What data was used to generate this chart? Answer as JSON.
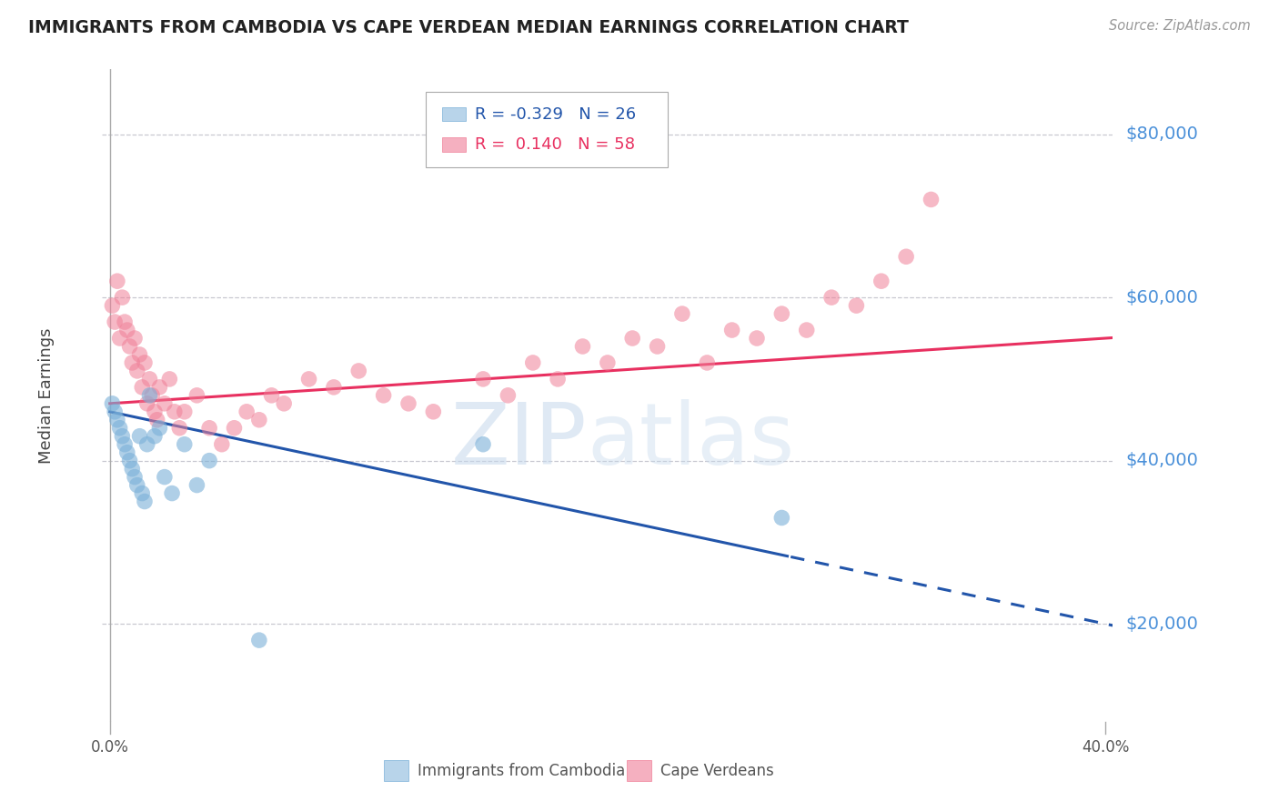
{
  "title": "IMMIGRANTS FROM CAMBODIA VS CAPE VERDEAN MEDIAN EARNINGS CORRELATION CHART",
  "source": "Source: ZipAtlas.com",
  "ylabel": "Median Earnings",
  "xlim": [
    -0.003,
    0.403
  ],
  "ylim": [
    8000,
    88000
  ],
  "yticks": [
    20000,
    40000,
    60000,
    80000
  ],
  "ytick_labels": [
    "$20,000",
    "$40,000",
    "$60,000",
    "$80,000"
  ],
  "background_color": "#ffffff",
  "grid_color": "#c8c8d0",
  "cambodia_color": "#7ab0d8",
  "capeverdean_color": "#f08098",
  "cambodia_line_color": "#2255aa",
  "capeverdean_line_color": "#e83060",
  "legend_label_cambodia": "Immigrants from Cambodia",
  "legend_label_capeverdean": "Cape Verdeans",
  "cambodia_x": [
    0.001,
    0.002,
    0.003,
    0.004,
    0.005,
    0.006,
    0.007,
    0.008,
    0.009,
    0.01,
    0.011,
    0.012,
    0.013,
    0.014,
    0.015,
    0.016,
    0.018,
    0.02,
    0.022,
    0.025,
    0.03,
    0.035,
    0.04,
    0.06,
    0.15,
    0.27
  ],
  "cambodia_y": [
    47000,
    46000,
    45000,
    44000,
    43000,
    42000,
    41000,
    40000,
    39000,
    38000,
    37000,
    43000,
    36000,
    35000,
    42000,
    48000,
    43000,
    44000,
    38000,
    36000,
    42000,
    37000,
    40000,
    18000,
    42000,
    33000
  ],
  "capeverdean_x": [
    0.001,
    0.002,
    0.003,
    0.004,
    0.005,
    0.006,
    0.007,
    0.008,
    0.009,
    0.01,
    0.011,
    0.012,
    0.013,
    0.014,
    0.015,
    0.016,
    0.017,
    0.018,
    0.019,
    0.02,
    0.022,
    0.024,
    0.026,
    0.028,
    0.03,
    0.035,
    0.04,
    0.045,
    0.05,
    0.055,
    0.06,
    0.065,
    0.07,
    0.08,
    0.09,
    0.1,
    0.11,
    0.12,
    0.13,
    0.15,
    0.16,
    0.17,
    0.18,
    0.19,
    0.2,
    0.21,
    0.22,
    0.23,
    0.24,
    0.25,
    0.26,
    0.27,
    0.28,
    0.29,
    0.3,
    0.31,
    0.32,
    0.33
  ],
  "capeverdean_y": [
    59000,
    57000,
    62000,
    55000,
    60000,
    57000,
    56000,
    54000,
    52000,
    55000,
    51000,
    53000,
    49000,
    52000,
    47000,
    50000,
    48000,
    46000,
    45000,
    49000,
    47000,
    50000,
    46000,
    44000,
    46000,
    48000,
    44000,
    42000,
    44000,
    46000,
    45000,
    48000,
    47000,
    50000,
    49000,
    51000,
    48000,
    47000,
    46000,
    50000,
    48000,
    52000,
    50000,
    54000,
    52000,
    55000,
    54000,
    58000,
    52000,
    56000,
    55000,
    58000,
    56000,
    60000,
    59000,
    62000,
    65000,
    72000
  ]
}
